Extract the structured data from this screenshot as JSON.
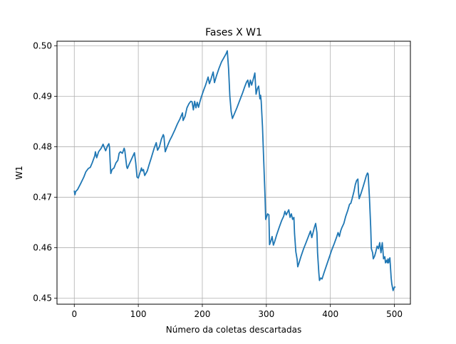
{
  "chart_data": {
    "type": "line",
    "title": "Fases X W1",
    "xlabel": "Número da coletas descartadas",
    "ylabel": "W1",
    "xlim": [
      -27,
      525
    ],
    "ylim": [
      0.4488,
      0.5009
    ],
    "grid": true,
    "x_ticks": [
      0,
      100,
      200,
      300,
      400,
      500
    ],
    "x_tick_labels": [
      "0",
      "100",
      "200",
      "300",
      "400",
      "500"
    ],
    "y_ticks": [
      0.45,
      0.46,
      0.47,
      0.48,
      0.49,
      0.5
    ],
    "y_tick_labels": [
      "0.45",
      "0.46",
      "0.47",
      "0.48",
      "0.49",
      "0.50"
    ],
    "series": [
      {
        "color": "#1f77b4",
        "points": [
          [
            0,
            0.4712
          ],
          [
            1,
            0.4705
          ],
          [
            2,
            0.4711
          ],
          [
            5,
            0.4715
          ],
          [
            10,
            0.4727
          ],
          [
            15,
            0.474
          ],
          [
            18,
            0.475
          ],
          [
            22,
            0.4757
          ],
          [
            25,
            0.4759
          ],
          [
            28,
            0.4768
          ],
          [
            32,
            0.4782
          ],
          [
            33,
            0.479
          ],
          [
            35,
            0.4778
          ],
          [
            38,
            0.479
          ],
          [
            42,
            0.4797
          ],
          [
            45,
            0.4805
          ],
          [
            47,
            0.4798
          ],
          [
            49,
            0.4792
          ],
          [
            52,
            0.4802
          ],
          [
            54,
            0.4806
          ],
          [
            55,
            0.4799
          ],
          [
            56,
            0.477
          ],
          [
            57,
            0.4747
          ],
          [
            59,
            0.4755
          ],
          [
            62,
            0.4758
          ],
          [
            65,
            0.4768
          ],
          [
            68,
            0.4773
          ],
          [
            70,
            0.4787
          ],
          [
            72,
            0.479
          ],
          [
            75,
            0.4787
          ],
          [
            78,
            0.4797
          ],
          [
            79,
            0.4792
          ],
          [
            82,
            0.476
          ],
          [
            83,
            0.4757
          ],
          [
            86,
            0.4766
          ],
          [
            90,
            0.4777
          ],
          [
            94,
            0.4788
          ],
          [
            96,
            0.4768
          ],
          [
            98,
            0.474
          ],
          [
            100,
            0.4738
          ],
          [
            103,
            0.475
          ],
          [
            105,
            0.4758
          ],
          [
            106,
            0.4752
          ],
          [
            108,
            0.4755
          ],
          [
            110,
            0.4743
          ],
          [
            114,
            0.4752
          ],
          [
            117,
            0.4765
          ],
          [
            120,
            0.4777
          ],
          [
            125,
            0.4798
          ],
          [
            128,
            0.4808
          ],
          [
            130,
            0.4793
          ],
          [
            133,
            0.48
          ],
          [
            136,
            0.4815
          ],
          [
            139,
            0.4824
          ],
          [
            140,
            0.482
          ],
          [
            142,
            0.479
          ],
          [
            145,
            0.48
          ],
          [
            149,
            0.4812
          ],
          [
            153,
            0.4822
          ],
          [
            157,
            0.4833
          ],
          [
            161,
            0.4845
          ],
          [
            165,
            0.4855
          ],
          [
            169,
            0.4867
          ],
          [
            170,
            0.4852
          ],
          [
            173,
            0.486
          ],
          [
            176,
            0.4877
          ],
          [
            179,
            0.4885
          ],
          [
            182,
            0.489
          ],
          [
            184,
            0.4889
          ],
          [
            186,
            0.4873
          ],
          [
            188,
            0.489
          ],
          [
            190,
            0.4877
          ],
          [
            192,
            0.4888
          ],
          [
            194,
            0.4878
          ],
          [
            196,
            0.4888
          ],
          [
            198,
            0.4897
          ],
          [
            202,
            0.4912
          ],
          [
            205,
            0.4922
          ],
          [
            207,
            0.493
          ],
          [
            209,
            0.4938
          ],
          [
            211,
            0.4925
          ],
          [
            213,
            0.4932
          ],
          [
            215,
            0.494
          ],
          [
            217,
            0.4948
          ],
          [
            219,
            0.4927
          ],
          [
            222,
            0.494
          ],
          [
            226,
            0.4955
          ],
          [
            230,
            0.4968
          ],
          [
            234,
            0.4977
          ],
          [
            237,
            0.4984
          ],
          [
            239,
            0.499
          ],
          [
            241,
            0.4955
          ],
          [
            243,
            0.49
          ],
          [
            245,
            0.487
          ],
          [
            247,
            0.4856
          ],
          [
            250,
            0.4865
          ],
          [
            254,
            0.4877
          ],
          [
            257,
            0.4887
          ],
          [
            260,
            0.4897
          ],
          [
            263,
            0.4907
          ],
          [
            266,
            0.4918
          ],
          [
            269,
            0.4928
          ],
          [
            271,
            0.4932
          ],
          [
            273,
            0.4918
          ],
          [
            275,
            0.4932
          ],
          [
            277,
            0.4922
          ],
          [
            280,
            0.4936
          ],
          [
            282,
            0.4946
          ],
          [
            284,
            0.4904
          ],
          [
            286,
            0.4915
          ],
          [
            288,
            0.492
          ],
          [
            290,
            0.4895
          ],
          [
            291,
            0.4902
          ],
          [
            292,
            0.489
          ],
          [
            294,
            0.484
          ],
          [
            296,
            0.477
          ],
          [
            298,
            0.47
          ],
          [
            299,
            0.4656
          ],
          [
            302,
            0.4667
          ],
          [
            304,
            0.4665
          ],
          [
            305,
            0.4606
          ],
          [
            307,
            0.4613
          ],
          [
            309,
            0.4622
          ],
          [
            311,
            0.4605
          ],
          [
            313,
            0.4612
          ],
          [
            316,
            0.4625
          ],
          [
            320,
            0.464
          ],
          [
            324,
            0.4654
          ],
          [
            327,
            0.4662
          ],
          [
            329,
            0.4672
          ],
          [
            331,
            0.4665
          ],
          [
            333,
            0.467
          ],
          [
            335,
            0.4675
          ],
          [
            337,
            0.466
          ],
          [
            339,
            0.4667
          ],
          [
            341,
            0.4656
          ],
          [
            343,
            0.466
          ],
          [
            344,
            0.4628
          ],
          [
            346,
            0.4592
          ],
          [
            348,
            0.4577
          ],
          [
            349,
            0.4562
          ],
          [
            351,
            0.457
          ],
          [
            354,
            0.4582
          ],
          [
            358,
            0.4597
          ],
          [
            362,
            0.461
          ],
          [
            366,
            0.4623
          ],
          [
            369,
            0.4633
          ],
          [
            371,
            0.462
          ],
          [
            373,
            0.463
          ],
          [
            375,
            0.464
          ],
          [
            377,
            0.4648
          ],
          [
            379,
            0.463
          ],
          [
            380,
            0.459
          ],
          [
            382,
            0.455
          ],
          [
            383,
            0.4535
          ],
          [
            385,
            0.454
          ],
          [
            387,
            0.4538
          ],
          [
            390,
            0.455
          ],
          [
            394,
            0.4565
          ],
          [
            398,
            0.458
          ],
          [
            402,
            0.4595
          ],
          [
            406,
            0.4608
          ],
          [
            410,
            0.4622
          ],
          [
            412,
            0.463
          ],
          [
            414,
            0.4622
          ],
          [
            416,
            0.4633
          ],
          [
            418,
            0.464
          ],
          [
            421,
            0.4648
          ],
          [
            424,
            0.4662
          ],
          [
            427,
            0.4673
          ],
          [
            430,
            0.4686
          ],
          [
            432,
            0.4688
          ],
          [
            434,
            0.4697
          ],
          [
            437,
            0.4712
          ],
          [
            439,
            0.4725
          ],
          [
            441,
            0.4733
          ],
          [
            443,
            0.4736
          ],
          [
            444,
            0.471
          ],
          [
            445,
            0.4697
          ],
          [
            448,
            0.4708
          ],
          [
            451,
            0.472
          ],
          [
            454,
            0.4733
          ],
          [
            456,
            0.4742
          ],
          [
            458,
            0.4748
          ],
          [
            459,
            0.4746
          ],
          [
            461,
            0.47
          ],
          [
            463,
            0.464
          ],
          [
            464,
            0.4598
          ],
          [
            466,
            0.459
          ],
          [
            467,
            0.4578
          ],
          [
            469,
            0.4583
          ],
          [
            471,
            0.4592
          ],
          [
            473,
            0.4603
          ],
          [
            475,
            0.4598
          ],
          [
            477,
            0.461
          ],
          [
            479,
            0.459
          ],
          [
            481,
            0.461
          ],
          [
            482,
            0.4595
          ],
          [
            483,
            0.4578
          ],
          [
            485,
            0.4582
          ],
          [
            486,
            0.457
          ],
          [
            488,
            0.4575
          ],
          [
            489,
            0.457
          ],
          [
            490,
            0.4578
          ],
          [
            491,
            0.457
          ],
          [
            493,
            0.458
          ],
          [
            494,
            0.456
          ],
          [
            495,
            0.454
          ],
          [
            496,
            0.4528
          ],
          [
            498,
            0.4515
          ],
          [
            500,
            0.4522
          ],
          [
            501,
            0.4522
          ]
        ]
      }
    ]
  }
}
